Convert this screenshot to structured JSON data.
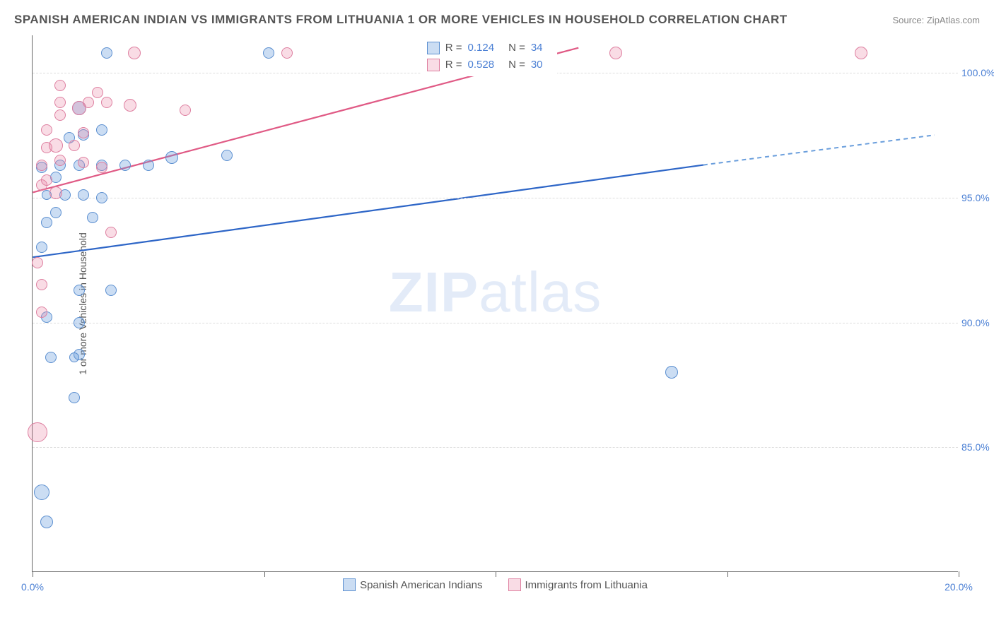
{
  "title": "SPANISH AMERICAN INDIAN VS IMMIGRANTS FROM LITHUANIA 1 OR MORE VEHICLES IN HOUSEHOLD CORRELATION CHART",
  "source": "Source: ZipAtlas.com",
  "watermark_a": "ZIP",
  "watermark_b": "atlas",
  "y_axis_title": "1 or more Vehicles in Household",
  "chart": {
    "type": "scatter-with-trend",
    "xlim": [
      0,
      20
    ],
    "ylim": [
      80,
      101.5
    ],
    "x_ticks": [
      0,
      5,
      10,
      15,
      20
    ],
    "x_tick_labels": [
      "0.0%",
      "",
      "",
      "",
      "20.0%"
    ],
    "y_ticks": [
      85,
      90,
      95,
      100
    ],
    "y_tick_labels": [
      "85.0%",
      "90.0%",
      "95.0%",
      "100.0%"
    ],
    "background": "#ffffff",
    "grid_color": "#dddddd",
    "series": [
      {
        "id": "sai",
        "label": "Spanish American Indians",
        "fill": "rgba(106,158,220,0.35)",
        "stroke": "#5b8fd0",
        "line_color": "#2e66c7",
        "line_dash_color": "#6a9edc",
        "R": "0.124",
        "N": "34",
        "trend": {
          "x1": 0,
          "y1": 92.6,
          "x2_solid": 14.5,
          "y2_solid": 96.3,
          "x2": 19.5,
          "y2": 97.5
        },
        "points": [
          {
            "x": 0.3,
            "y": 82.0,
            "r": 9
          },
          {
            "x": 0.2,
            "y": 83.2,
            "r": 11
          },
          {
            "x": 0.9,
            "y": 87.0,
            "r": 8
          },
          {
            "x": 1.0,
            "y": 88.7,
            "r": 8
          },
          {
            "x": 0.9,
            "y": 88.6,
            "r": 7
          },
          {
            "x": 0.4,
            "y": 88.6,
            "r": 8
          },
          {
            "x": 1.0,
            "y": 90.0,
            "r": 8
          },
          {
            "x": 0.3,
            "y": 90.2,
            "r": 8
          },
          {
            "x": 13.8,
            "y": 88.0,
            "r": 9
          },
          {
            "x": 1.0,
            "y": 91.3,
            "r": 8
          },
          {
            "x": 1.7,
            "y": 91.3,
            "r": 8
          },
          {
            "x": 0.2,
            "y": 93.0,
            "r": 8
          },
          {
            "x": 0.3,
            "y": 94.0,
            "r": 8
          },
          {
            "x": 0.5,
            "y": 94.4,
            "r": 8
          },
          {
            "x": 1.3,
            "y": 94.2,
            "r": 8
          },
          {
            "x": 0.3,
            "y": 95.1,
            "r": 7
          },
          {
            "x": 0.7,
            "y": 95.1,
            "r": 8
          },
          {
            "x": 1.1,
            "y": 95.1,
            "r": 8
          },
          {
            "x": 1.5,
            "y": 95.0,
            "r": 8
          },
          {
            "x": 0.5,
            "y": 95.8,
            "r": 8
          },
          {
            "x": 0.2,
            "y": 96.2,
            "r": 8
          },
          {
            "x": 0.6,
            "y": 96.3,
            "r": 8
          },
          {
            "x": 1.0,
            "y": 96.3,
            "r": 8
          },
          {
            "x": 1.5,
            "y": 96.3,
            "r": 8
          },
          {
            "x": 2.0,
            "y": 96.3,
            "r": 8
          },
          {
            "x": 2.5,
            "y": 96.3,
            "r": 8
          },
          {
            "x": 3.0,
            "y": 96.6,
            "r": 9
          },
          {
            "x": 4.2,
            "y": 96.7,
            "r": 8
          },
          {
            "x": 1.5,
            "y": 97.7,
            "r": 8
          },
          {
            "x": 0.8,
            "y": 97.4,
            "r": 8
          },
          {
            "x": 1.1,
            "y": 97.5,
            "r": 8
          },
          {
            "x": 1.6,
            "y": 100.8,
            "r": 8
          },
          {
            "x": 5.1,
            "y": 100.8,
            "r": 8
          },
          {
            "x": 1.0,
            "y": 98.6,
            "r": 10
          }
        ]
      },
      {
        "id": "lith",
        "label": "Immigrants from Lithuania",
        "fill": "rgba(235,130,160,0.28)",
        "stroke": "#de7fa0",
        "line_color": "#e05a85",
        "R": "0.528",
        "N": "30",
        "trend": {
          "x1": 0,
          "y1": 95.2,
          "x2": 11.8,
          "y2": 101
        },
        "points": [
          {
            "x": 0.1,
            "y": 85.6,
            "r": 14
          },
          {
            "x": 0.2,
            "y": 90.4,
            "r": 8
          },
          {
            "x": 0.2,
            "y": 91.5,
            "r": 8
          },
          {
            "x": 0.1,
            "y": 92.4,
            "r": 8
          },
          {
            "x": 1.7,
            "y": 93.6,
            "r": 8
          },
          {
            "x": 0.5,
            "y": 95.2,
            "r": 9
          },
          {
            "x": 0.2,
            "y": 95.5,
            "r": 8
          },
          {
            "x": 0.3,
            "y": 95.7,
            "r": 8
          },
          {
            "x": 0.2,
            "y": 96.3,
            "r": 8
          },
          {
            "x": 0.6,
            "y": 96.5,
            "r": 8
          },
          {
            "x": 1.1,
            "y": 96.4,
            "r": 8
          },
          {
            "x": 1.5,
            "y": 96.2,
            "r": 8
          },
          {
            "x": 0.3,
            "y": 97.0,
            "r": 8
          },
          {
            "x": 0.5,
            "y": 97.1,
            "r": 10
          },
          {
            "x": 0.9,
            "y": 97.1,
            "r": 8
          },
          {
            "x": 1.1,
            "y": 97.6,
            "r": 8
          },
          {
            "x": 0.3,
            "y": 97.7,
            "r": 8
          },
          {
            "x": 1.0,
            "y": 98.6,
            "r": 10
          },
          {
            "x": 0.6,
            "y": 98.3,
            "r": 8
          },
          {
            "x": 1.2,
            "y": 98.8,
            "r": 8
          },
          {
            "x": 0.6,
            "y": 98.8,
            "r": 8
          },
          {
            "x": 1.6,
            "y": 98.8,
            "r": 8
          },
          {
            "x": 2.1,
            "y": 98.7,
            "r": 9
          },
          {
            "x": 0.6,
            "y": 99.5,
            "r": 8
          },
          {
            "x": 1.4,
            "y": 99.2,
            "r": 8
          },
          {
            "x": 2.2,
            "y": 100.8,
            "r": 9
          },
          {
            "x": 3.3,
            "y": 98.5,
            "r": 8
          },
          {
            "x": 5.5,
            "y": 100.8,
            "r": 8
          },
          {
            "x": 12.6,
            "y": 100.8,
            "r": 9
          },
          {
            "x": 17.9,
            "y": 100.8,
            "r": 9
          }
        ]
      }
    ]
  }
}
